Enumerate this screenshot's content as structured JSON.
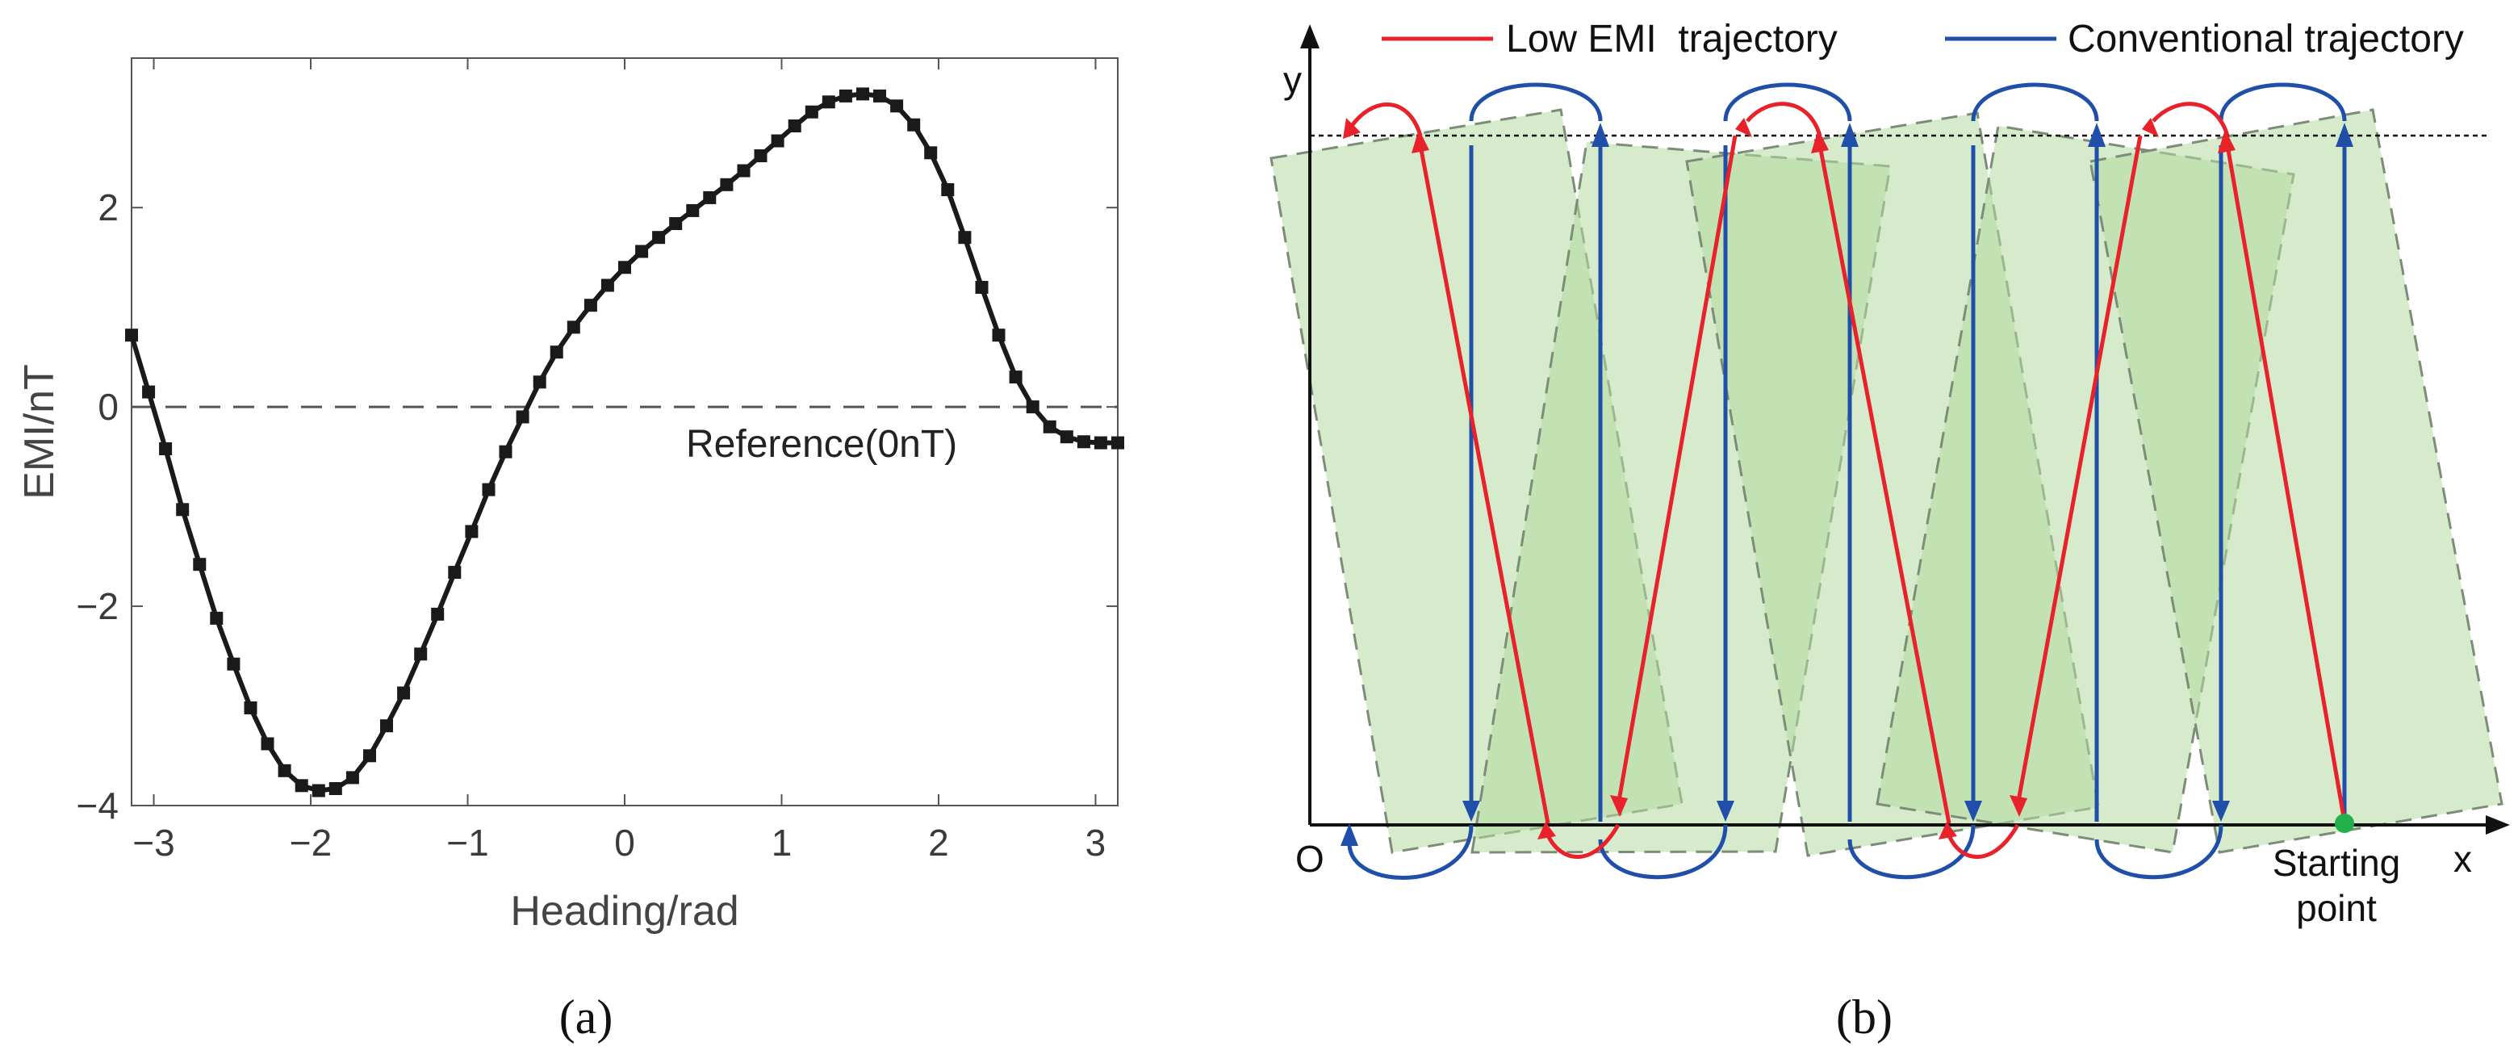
{
  "chart_data": [
    {
      "type": "line",
      "panel_label": "(a)",
      "xlabel": "Heading/rad",
      "ylabel": "EMI/nT",
      "xlim": [
        -3.1416,
        3.1416
      ],
      "ylim": [
        -4,
        3.5
      ],
      "xticks": [
        -3,
        -2,
        -1,
        0,
        1,
        2,
        3
      ],
      "yticks": [
        -4,
        -2,
        0,
        2
      ],
      "xtick_labels": [
        "−3",
        "−2",
        "−1",
        "0",
        "1",
        "2",
        "3"
      ],
      "ytick_labels": [
        "−4",
        "−2",
        "0",
        "2"
      ],
      "reference_line": {
        "y": 0,
        "label": "Reference(0nT)"
      },
      "series": [
        {
          "name": "EMI",
          "marker": "square",
          "x": [
            -3.1416,
            -3.0333,
            -2.925,
            -2.8166,
            -2.7083,
            -2.6,
            -2.4916,
            -2.3833,
            -2.275,
            -2.1666,
            -2.0583,
            -1.95,
            -1.8416,
            -1.7333,
            -1.625,
            -1.5166,
            -1.4083,
            -1.3,
            -1.1916,
            -1.0833,
            -0.975,
            -0.8666,
            -0.7583,
            -0.65,
            -0.5416,
            -0.4333,
            -0.325,
            -0.2166,
            -0.1083,
            0.0,
            0.1083,
            0.2166,
            0.325,
            0.4333,
            0.5416,
            0.65,
            0.7583,
            0.8666,
            0.975,
            1.0833,
            1.1916,
            1.3,
            1.4083,
            1.5166,
            1.625,
            1.7333,
            1.8416,
            1.95,
            2.0583,
            2.1666,
            2.275,
            2.3833,
            2.4916,
            2.6,
            2.7083,
            2.8166,
            2.925,
            3.0333,
            3.1416
          ],
          "y": [
            0.72,
            0.15,
            -0.42,
            -1.03,
            -1.58,
            -2.12,
            -2.58,
            -3.02,
            -3.38,
            -3.65,
            -3.8,
            -3.85,
            -3.83,
            -3.72,
            -3.5,
            -3.2,
            -2.87,
            -2.48,
            -2.08,
            -1.66,
            -1.25,
            -0.83,
            -0.45,
            -0.1,
            0.25,
            0.55,
            0.8,
            1.02,
            1.22,
            1.4,
            1.56,
            1.7,
            1.84,
            1.97,
            2.1,
            2.23,
            2.37,
            2.52,
            2.67,
            2.82,
            2.96,
            3.06,
            3.12,
            3.14,
            3.12,
            3.02,
            2.83,
            2.55,
            2.18,
            1.7,
            1.2,
            0.72,
            0.3,
            0.0,
            -0.2,
            -0.3,
            -0.35,
            -0.36,
            -0.36
          ]
        }
      ]
    },
    {
      "type": "diagram",
      "panel_label": "(b)",
      "axis_labels": {
        "x": "x",
        "y": "y",
        "origin": "O"
      },
      "start_label_line1": "Starting",
      "start_label_line2": "point",
      "legend": [
        {
          "name": "Low EMI  trajectory",
          "color": "#e8212b"
        },
        {
          "name": "Conventional trajectory",
          "color": "#1f4fa8"
        }
      ]
    }
  ],
  "colors": {
    "curve": "#1a1a1a",
    "low_emi": "#e8212b",
    "conventional": "#1f4fa8",
    "coverage_fill": "#b5dba0",
    "start_point": "#22b04b"
  }
}
